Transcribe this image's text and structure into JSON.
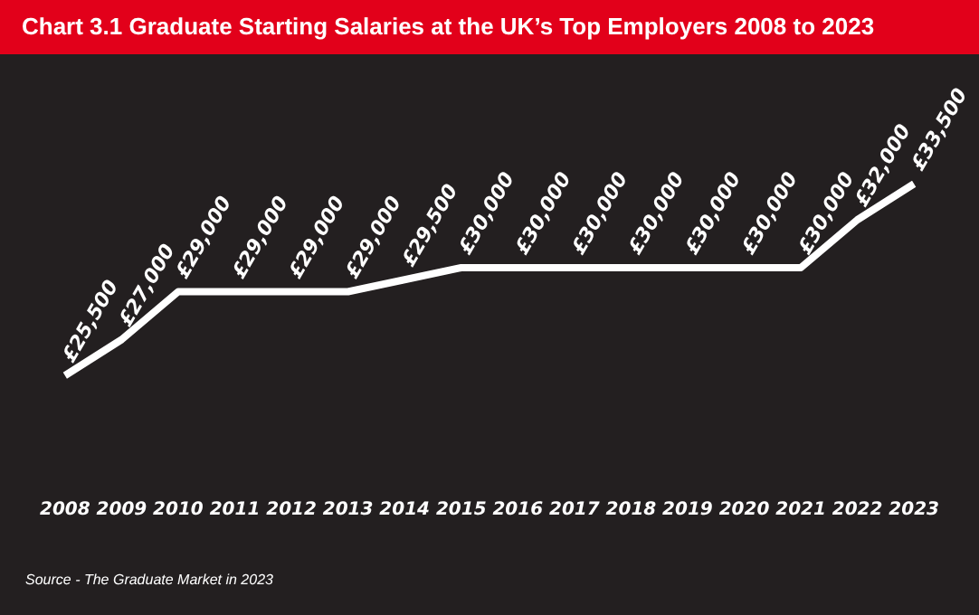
{
  "chart_data": {
    "type": "line",
    "title": "Chart 3.1  Graduate Starting Salaries at the UK’s Top Employers 2008 to 2023",
    "categories": [
      "2008",
      "2009",
      "2010",
      "2011",
      "2012",
      "2013",
      "2014",
      "2015",
      "2016",
      "2017",
      "2018",
      "2019",
      "2020",
      "2021",
      "2022",
      "2023"
    ],
    "series": [
      {
        "color": "#ffffff",
        "values": [
          25500,
          27000,
          29000,
          29000,
          29000,
          29000,
          29500,
          30000,
          30000,
          30000,
          30000,
          30000,
          30000,
          30000,
          32000,
          33500
        ],
        "value_labels": [
          "£25,500",
          "£27,000",
          "£29,000",
          "£29,000",
          "£29,000",
          "£29,000",
          "£29,500",
          "£30,000",
          "£30,000",
          "£30,000",
          "£30,000",
          "£30,000",
          "£30,000",
          "£30,000",
          "£32,000",
          "£33,500"
        ]
      }
    ],
    "marker": "none",
    "legend": false,
    "tick_labels": "x",
    "annotations": [
      "Source - The Graduate Market in 2023"
    ]
  }
}
